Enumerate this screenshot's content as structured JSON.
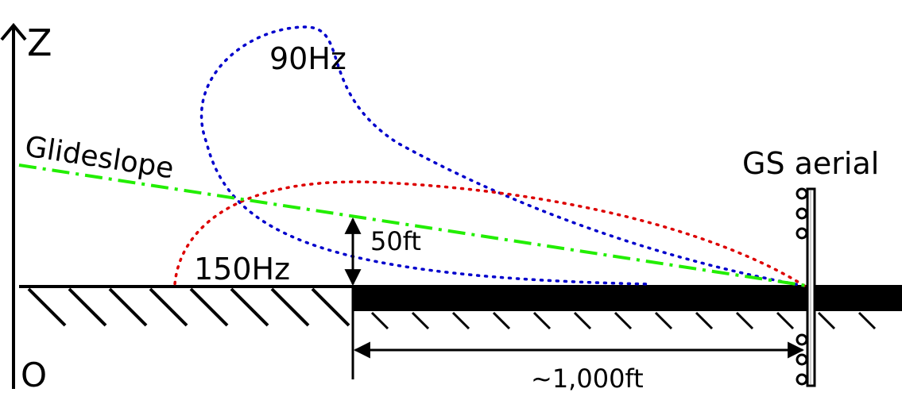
{
  "labels": {
    "z_axis": "Z",
    "origin": "O",
    "glideslope": "Glideslope",
    "lobe_90": "90Hz",
    "lobe_150": "150Hz",
    "height": "50ft",
    "distance": "~1,000ft",
    "aerial": "GS aerial"
  },
  "colors": {
    "lobe_90": "#0000cc",
    "lobe_150": "#dd0000",
    "glideslope": "#22ee00",
    "ground": "#000000"
  }
}
